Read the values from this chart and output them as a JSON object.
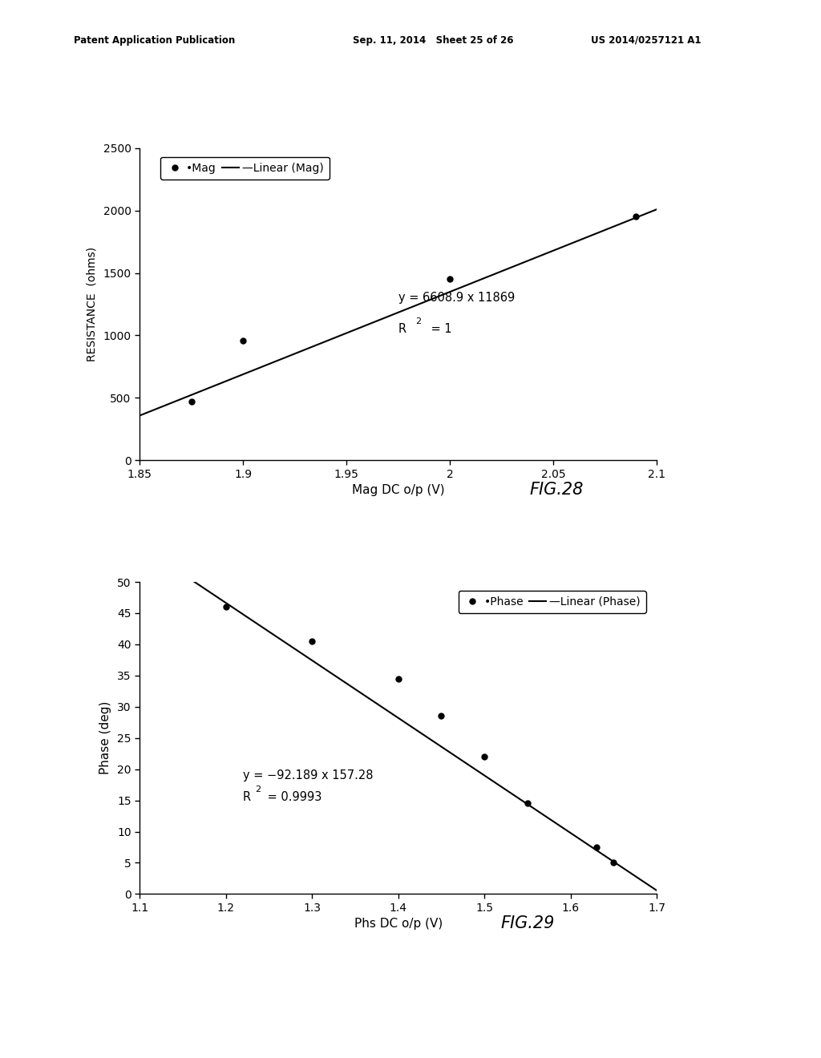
{
  "fig28": {
    "x_data": [
      1.875,
      1.9,
      2.0,
      2.09
    ],
    "y_data": [
      470,
      960,
      1450,
      1950
    ],
    "slope": 6608.9,
    "intercept": -11869,
    "xlim": [
      1.85,
      2.1
    ],
    "ylim": [
      0,
      2500
    ],
    "xticks": [
      1.85,
      1.9,
      1.95,
      2.0,
      2.05,
      2.1
    ],
    "yticks": [
      0,
      500,
      1000,
      1500,
      2000,
      2500
    ],
    "xlabel": "Mag DC o/p (V)",
    "ylabel": "RESISTANCE  (ohms)",
    "legend_label": "•Mag  —Linear (Mag)",
    "eq_text": "y = 6608.9 x 11869",
    "r2_text": "R2 = 1",
    "eq_x": 1.975,
    "eq_y": 1300,
    "r2_x": 1.975,
    "r2_y": 1050,
    "fig_label": "FIG.28"
  },
  "fig29": {
    "x_data": [
      1.2,
      1.3,
      1.4,
      1.45,
      1.5,
      1.55,
      1.63,
      1.65
    ],
    "y_data": [
      46,
      40.5,
      34.5,
      28.5,
      22,
      14.5,
      7.5,
      5
    ],
    "slope": -92.189,
    "intercept": 157.28,
    "xlim": [
      1.1,
      1.7
    ],
    "ylim": [
      0,
      50
    ],
    "xticks": [
      1.1,
      1.2,
      1.3,
      1.4,
      1.5,
      1.6,
      1.7
    ],
    "yticks": [
      0,
      5,
      10,
      15,
      20,
      25,
      30,
      35,
      40,
      45,
      50
    ],
    "xlabel": "Phs DC o/p (V)",
    "ylabel": "Phase (deg)",
    "legend_label": "•Phase  —Linear (Phase)",
    "eq_text": "y = −92.189 x 157.28",
    "r2_text": "R2 = 0.9993",
    "eq_x": 1.22,
    "eq_y": 19,
    "r2_x": 1.22,
    "r2_y": 15.5,
    "fig_label": "FIG.29"
  },
  "header_left": "Patent Application Publication",
  "header_mid": "Sep. 11, 2014   Sheet 25 of 26",
  "header_right": "US 2014/0257121 A1",
  "bg_color": "#ffffff",
  "line_color": "#000000",
  "marker_color": "#000000",
  "marker_size": 5
}
